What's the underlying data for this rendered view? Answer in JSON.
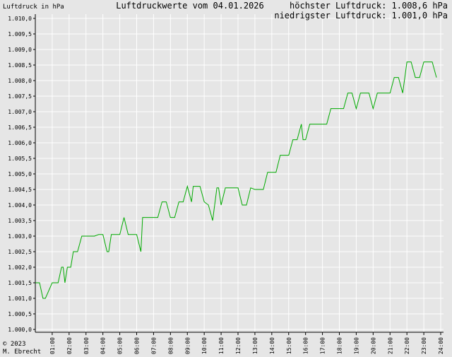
{
  "header": {
    "ylabel": "Luftdruck in hPa",
    "title": "Luftdruckwerte vom 04.01.2026",
    "max_label": "höchster Luftdruck: 1.008,6 hPa",
    "min_label": "niedrigster Luftdruck: 1.001,0 hPa"
  },
  "footer": {
    "copyright": "© 2023",
    "author": "M. Ebrecht"
  },
  "colors": {
    "background": "#e6e6e6",
    "line": "#00aa00",
    "axis": "#000000",
    "grid": "#ffffff"
  },
  "chart_data": {
    "type": "line",
    "title": "Luftdruckwerte vom 04.01.2026",
    "ylabel": "Luftdruck in hPa",
    "xlabel": "",
    "xlim": [
      0,
      24
    ],
    "ylim": [
      1000.0,
      1010.0
    ],
    "grid": true,
    "y_ticks": [
      "1.000,0",
      "1.000,5",
      "1.001,0",
      "1.001,5",
      "1.002,0",
      "1.002,5",
      "1.003,0",
      "1.003,5",
      "1.004,0",
      "1.004,5",
      "1.005,0",
      "1.005,5",
      "1.006,0",
      "1.006,5",
      "1.007,0",
      "1.007,5",
      "1.008,0",
      "1.008,5",
      "1.009,0",
      "1.009,5",
      "1.010,0"
    ],
    "x_ticks": [
      "01:00",
      "02:00",
      "03:00",
      "04:00",
      "05:00",
      "06:00",
      "07:00",
      "08:00",
      "09:00",
      "10:00",
      "11:00",
      "12:00",
      "13:00",
      "14:00",
      "15:00",
      "16:00",
      "17:00",
      "18:00",
      "19:00",
      "20:00",
      "21:00",
      "22:00",
      "23:00",
      "24:00"
    ],
    "series": [
      {
        "x": [
          0.0,
          0.25,
          0.45,
          0.6,
          1.0,
          1.25,
          1.35,
          1.55,
          1.65,
          1.75,
          1.9,
          2.1,
          2.25,
          2.5,
          2.75,
          3.0,
          3.25,
          3.5,
          3.75,
          4.0,
          4.25,
          4.35,
          4.5,
          4.75,
          5.0,
          5.25,
          5.5,
          5.6,
          5.75,
          6.0,
          6.25,
          6.35,
          6.5,
          6.75,
          7.0,
          7.25,
          7.5,
          7.75,
          8.0,
          8.25,
          8.5,
          8.75,
          9.0,
          9.25,
          9.35,
          9.5,
          9.75,
          10.0,
          10.25,
          10.5,
          10.75,
          10.85,
          11.0,
          11.25,
          11.5,
          11.75,
          12.0,
          12.25,
          12.5,
          12.75,
          13.0,
          13.25,
          13.5,
          13.75,
          14.0,
          14.25,
          14.5,
          14.75,
          15.0,
          15.25,
          15.5,
          15.75,
          15.85,
          16.0,
          16.25,
          16.35,
          16.5,
          16.75,
          17.0,
          17.25,
          17.5,
          17.75,
          18.0,
          18.25,
          18.5,
          18.75,
          19.0,
          19.25,
          19.4,
          19.5,
          19.6,
          19.75,
          20.0,
          20.25,
          20.5,
          20.6,
          20.75,
          21.0,
          21.25,
          21.5,
          21.75,
          22.0,
          22.25,
          22.5,
          22.75,
          23.0,
          23.25,
          23.5,
          23.75
        ],
        "values": [
          1001.5,
          1001.5,
          1001.0,
          1001.0,
          1001.5,
          1001.5,
          1001.5,
          1002.0,
          1002.0,
          1001.5,
          1002.0,
          1002.0,
          1002.5,
          1002.5,
          1003.0,
          1003.0,
          1003.0,
          1003.0,
          1003.05,
          1003.05,
          1002.5,
          1002.5,
          1003.05,
          1003.05,
          1003.05,
          1003.6,
          1003.05,
          1003.05,
          1003.05,
          1003.05,
          1002.5,
          1003.6,
          1003.6,
          1003.6,
          1003.6,
          1003.6,
          1004.1,
          1004.1,
          1003.6,
          1003.6,
          1004.1,
          1004.1,
          1004.6,
          1004.1,
          1004.6,
          1004.6,
          1004.6,
          1004.1,
          1004.0,
          1003.5,
          1004.55,
          1004.55,
          1004.0,
          1004.55,
          1004.55,
          1004.55,
          1004.55,
          1004.0,
          1004.0,
          1004.55,
          1004.5,
          1004.5,
          1004.5,
          1005.05,
          1005.05,
          1005.05,
          1005.6,
          1005.6,
          1005.6,
          1006.1,
          1006.1,
          1006.6,
          1006.1,
          1006.1,
          1006.6,
          1006.6,
          1006.6,
          1006.6,
          1006.6,
          1006.6,
          1007.1,
          1007.1,
          1007.1,
          1007.1,
          1007.6,
          1007.6,
          1007.1,
          1007.6,
          1007.6,
          1007.6,
          1007.6,
          1007.6,
          1007.1,
          1007.6,
          1007.6,
          1007.6,
          1007.6,
          1007.6,
          1008.1,
          1008.1,
          1007.6,
          1008.6,
          1008.6,
          1008.1,
          1008.1,
          1008.6,
          1008.6,
          1008.6,
          1008.1
        ]
      }
    ]
  }
}
